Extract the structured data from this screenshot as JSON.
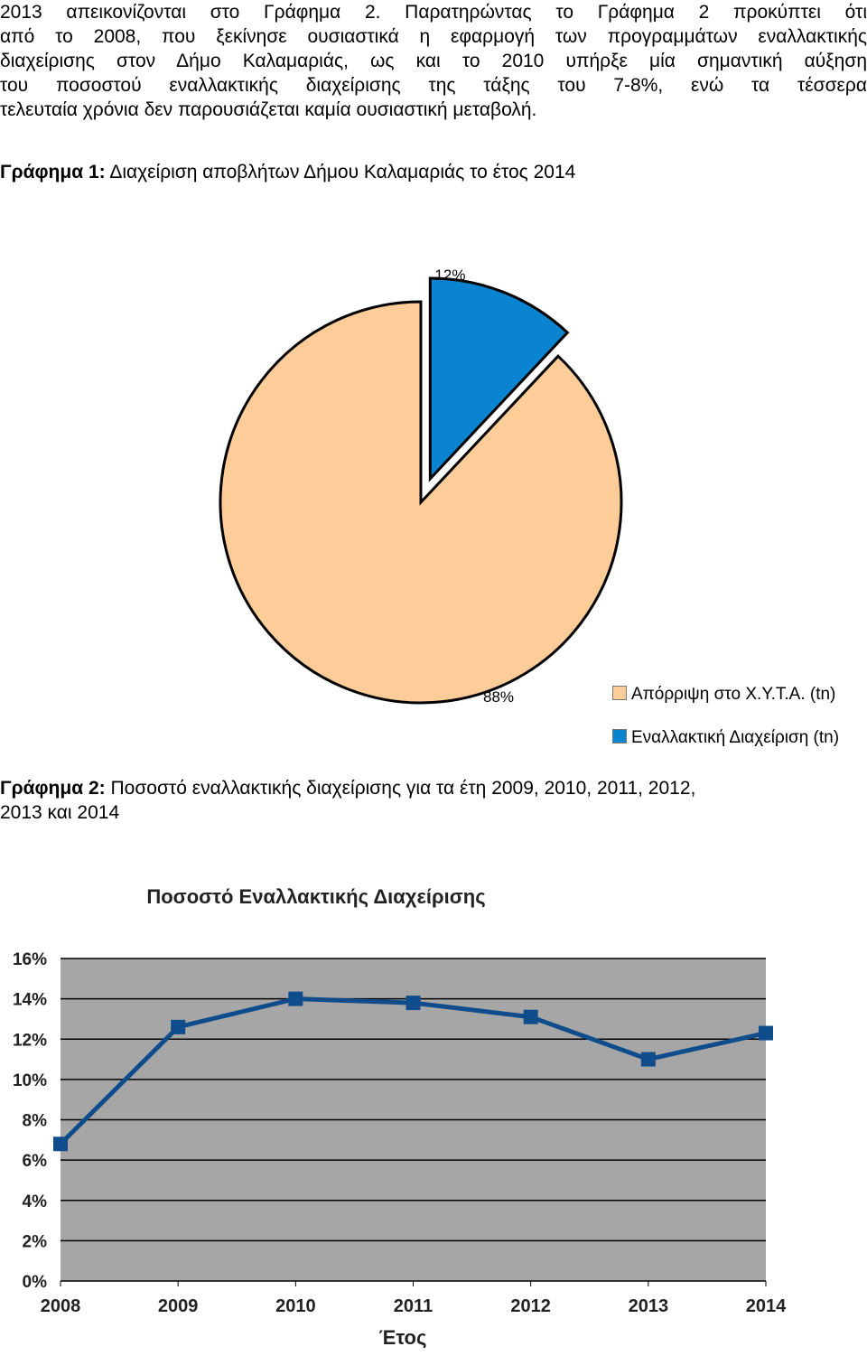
{
  "paragraph": {
    "lines": [
      "2013 απεικονίζονται στο Γράφημα 2. Παρατηρώντας το Γράφημα 2 προκύπτει ότι",
      "από το 2008, που ξεκίνησε ουσιαστικά η εφαρμογή των προγραμμάτων εναλλακτικής",
      "διαχείρισης στον Δήμο Καλαμαριάς, ως και το 2010 υπήρξε μία σημαντική αύξηση",
      "του ποσοστού εναλλακτικής διαχείρισης της τάξης του 7-8%, ενώ τα τέσσερα",
      "τελευταία χρόνια δεν παρουσιάζεται καμία ουσιαστική μεταβολή."
    ]
  },
  "figure1": {
    "label": "Γράφημα 1:",
    "caption": " Διαχείριση αποβλήτων Δήμου Καλαμαριάς το έτος 2014"
  },
  "figure2": {
    "label": "Γράφημα 2:",
    "caption_line1": " Ποσοστό εναλλακτικής διαχείρισης για τα έτη 2009, 2010, 2011, 2012,",
    "caption_line2": "2013 και 2014"
  },
  "chart_data": [
    {
      "type": "pie",
      "slices": [
        {
          "name": "Απόρριψη στο Χ.Υ.Τ.Α. (tn)",
          "value": 88,
          "label": "88%",
          "color": "#fccc99"
        },
        {
          "name": "Εναλλακτική Διαχείριση (tn)",
          "value": 12,
          "label": "12%",
          "color": "#0a84d0"
        }
      ],
      "legend_position": "right",
      "exploded_slice": "Εναλλακτική Διαχείριση (tn)"
    },
    {
      "type": "line",
      "title": "Ποσοστό Εναλλακτικής Διαχείρισης",
      "xlabel": "Έτος",
      "ylabel": "",
      "categories": [
        "2008",
        "2009",
        "2010",
        "2011",
        "2012",
        "2013",
        "2014"
      ],
      "series": [
        {
          "values": [
            6.8,
            12.6,
            14.0,
            13.8,
            13.1,
            11.0,
            12.3
          ],
          "color": "#0f4c8c"
        }
      ],
      "ylim": [
        0,
        16
      ],
      "yticks": [
        "0%",
        "2%",
        "4%",
        "6%",
        "8%",
        "10%",
        "12%",
        "14%",
        "16%"
      ],
      "grid": true,
      "plot_background": "#a6a6a6"
    }
  ]
}
